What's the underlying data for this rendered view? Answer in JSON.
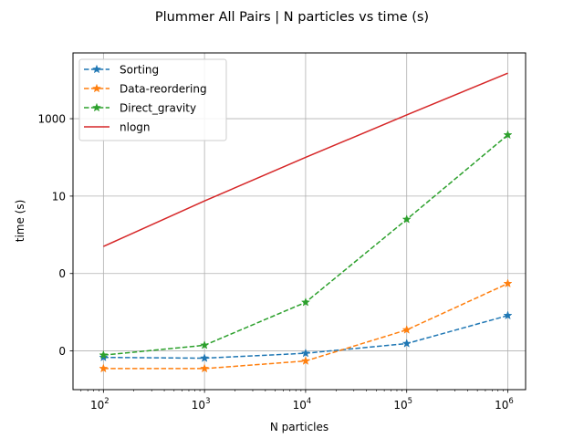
{
  "chart_data": {
    "type": "line",
    "title": "Plummer All Pairs | N particles vs time (s)",
    "xlabel": "N particles",
    "ylabel": "time (s)",
    "xscale": "log",
    "yscale": "log",
    "x": [
      100,
      1000,
      10000,
      100000,
      1000000
    ],
    "x_tick_labels": [
      {
        "base": "10",
        "exp": "2"
      },
      {
        "base": "10",
        "exp": "3"
      },
      {
        "base": "10",
        "exp": "4"
      },
      {
        "base": "10",
        "exp": "5"
      },
      {
        "base": "10",
        "exp": "6"
      }
    ],
    "y_ticks": [
      0.001,
      0.1,
      10,
      1000
    ],
    "y_tick_labels": [
      "0",
      "0",
      "10",
      "1000"
    ],
    "xlim": [
      50,
      1500000
    ],
    "ylim": [
      0.0001,
      50000
    ],
    "grid": true,
    "legend_position": "top-left",
    "series": [
      {
        "name": "Sorting",
        "color": "#1f77b4",
        "style": "dashed",
        "marker": "star",
        "values": [
          0.00068,
          0.00065,
          0.00087,
          0.00155,
          0.0082
        ]
      },
      {
        "name": "Data-reordering",
        "color": "#ff7f0e",
        "style": "dashed",
        "marker": "star",
        "values": [
          0.00035,
          0.00035,
          0.00055,
          0.0035,
          0.055
        ]
      },
      {
        "name": "Direct_gravity",
        "color": "#2ca02c",
        "style": "dashed",
        "marker": "star",
        "values": [
          0.00078,
          0.0014,
          0.018,
          2.5,
          380
        ]
      },
      {
        "name": "nlogn",
        "color": "#d62728",
        "style": "solid",
        "marker": "none",
        "values": [
          0.5,
          7.5,
          100,
          1250,
          15000
        ]
      }
    ]
  }
}
